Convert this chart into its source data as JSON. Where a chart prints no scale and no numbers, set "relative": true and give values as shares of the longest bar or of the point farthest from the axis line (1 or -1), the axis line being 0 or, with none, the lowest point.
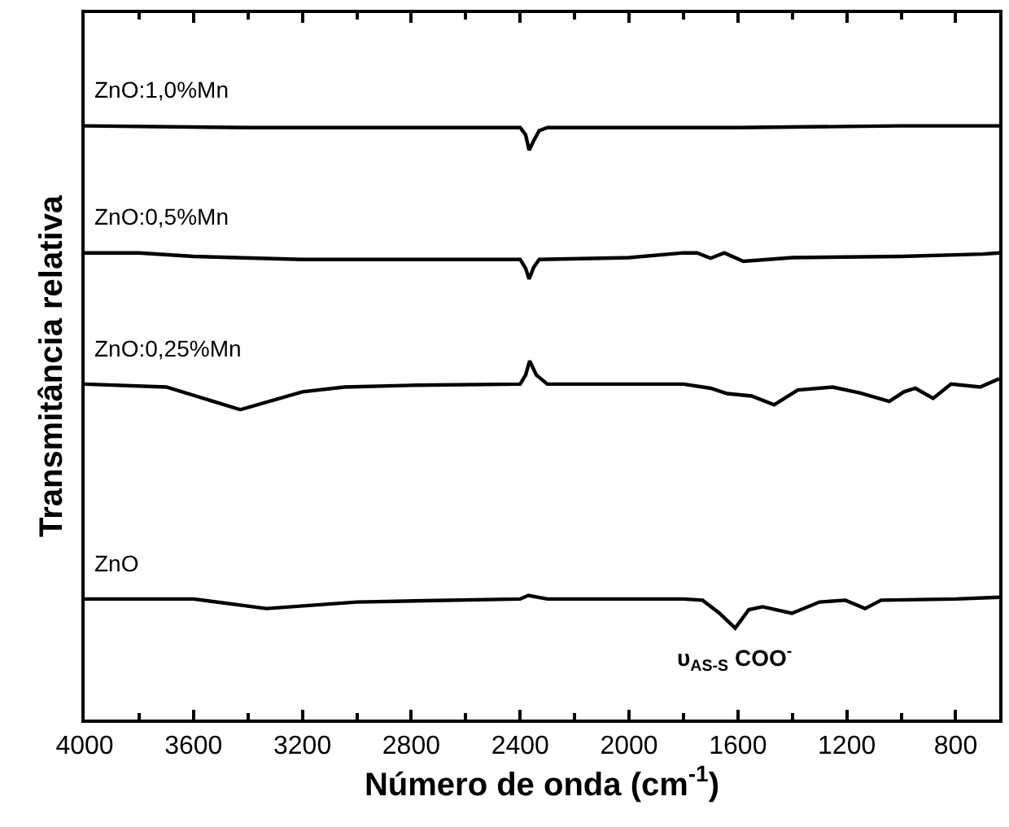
{
  "chart_data": {
    "type": "line",
    "relative": true,
    "xlabel": "Número de onda (cm$^{-1}$)",
    "ylabel": "Transmitância relativa",
    "xlim": [
      4000,
      640
    ],
    "xticks": [
      4000,
      {
        "value": 3800,
        "label": null
      },
      3600,
      {
        "value": 3400,
        "label": null
      },
      3200,
      {
        "value": 3000,
        "label": null
      },
      2800,
      {
        "value": 2600,
        "label": null
      },
      2400,
      {
        "value": 2200,
        "label": null
      },
      2000,
      {
        "value": 1800,
        "label": null
      },
      1600,
      {
        "value": 1400,
        "label": null
      },
      1200,
      {
        "value": 1000,
        "label": null
      },
      800
    ],
    "legend": false,
    "marker": "none",
    "line_style": "solid",
    "series": [
      {
        "name": "ZnO:1,0%Mn",
        "color": "#000000",
        "x": [
          4000,
          3400,
          2400,
          2380,
          2367,
          2350,
          2330,
          2300,
          1600,
          1000,
          700,
          640
        ],
        "values": [
          1.0,
          0.997,
          0.997,
          0.985,
          0.959,
          0.975,
          0.992,
          0.997,
          0.997,
          1.0,
          1.0,
          1.0
        ]
      },
      {
        "name": "ZnO:0,5%Mn",
        "color": "#000000",
        "x": [
          4000,
          3800,
          3600,
          3200,
          2400,
          2380,
          2367,
          2350,
          2330,
          2000,
          1800,
          1750,
          1700,
          1650,
          1580,
          1400,
          1000,
          700,
          640
        ],
        "values": [
          0.786,
          0.786,
          0.78,
          0.775,
          0.775,
          0.76,
          0.742,
          0.762,
          0.775,
          0.778,
          0.786,
          0.786,
          0.777,
          0.786,
          0.772,
          0.778,
          0.78,
          0.784,
          0.786
        ]
      },
      {
        "name": "ZnO:0,25%Mn",
        "color": "#000000",
        "x": [
          4000,
          3700,
          3428,
          3200,
          3046,
          2800,
          2400,
          2380,
          2365,
          2340,
          2300,
          1800,
          1700,
          1640,
          1550,
          1467,
          1380,
          1252,
          1150,
          1044,
          990,
          948,
          883,
          817,
          710,
          640
        ],
        "values": [
          0.565,
          0.56,
          0.522,
          0.552,
          0.56,
          0.563,
          0.565,
          0.58,
          0.604,
          0.58,
          0.565,
          0.565,
          0.558,
          0.549,
          0.545,
          0.53,
          0.555,
          0.56,
          0.55,
          0.536,
          0.552,
          0.558,
          0.541,
          0.565,
          0.56,
          0.574
        ]
      },
      {
        "name": "ZnO",
        "color": "#000000",
        "x": [
          4000,
          3600,
          3332,
          3000,
          2400,
          2370,
          2300,
          1800,
          1730,
          1670,
          1610,
          1560,
          1509,
          1402,
          1300,
          1205,
          1133,
          1074,
          800,
          640
        ],
        "values": [
          0.203,
          0.203,
          0.187,
          0.198,
          0.203,
          0.209,
          0.203,
          0.203,
          0.201,
          0.18,
          0.154,
          0.185,
          0.19,
          0.179,
          0.198,
          0.201,
          0.187,
          0.201,
          0.203,
          0.206
        ]
      }
    ],
    "annotations": [
      "υ$_{AS-S}$ COO$^{-}$"
    ]
  }
}
